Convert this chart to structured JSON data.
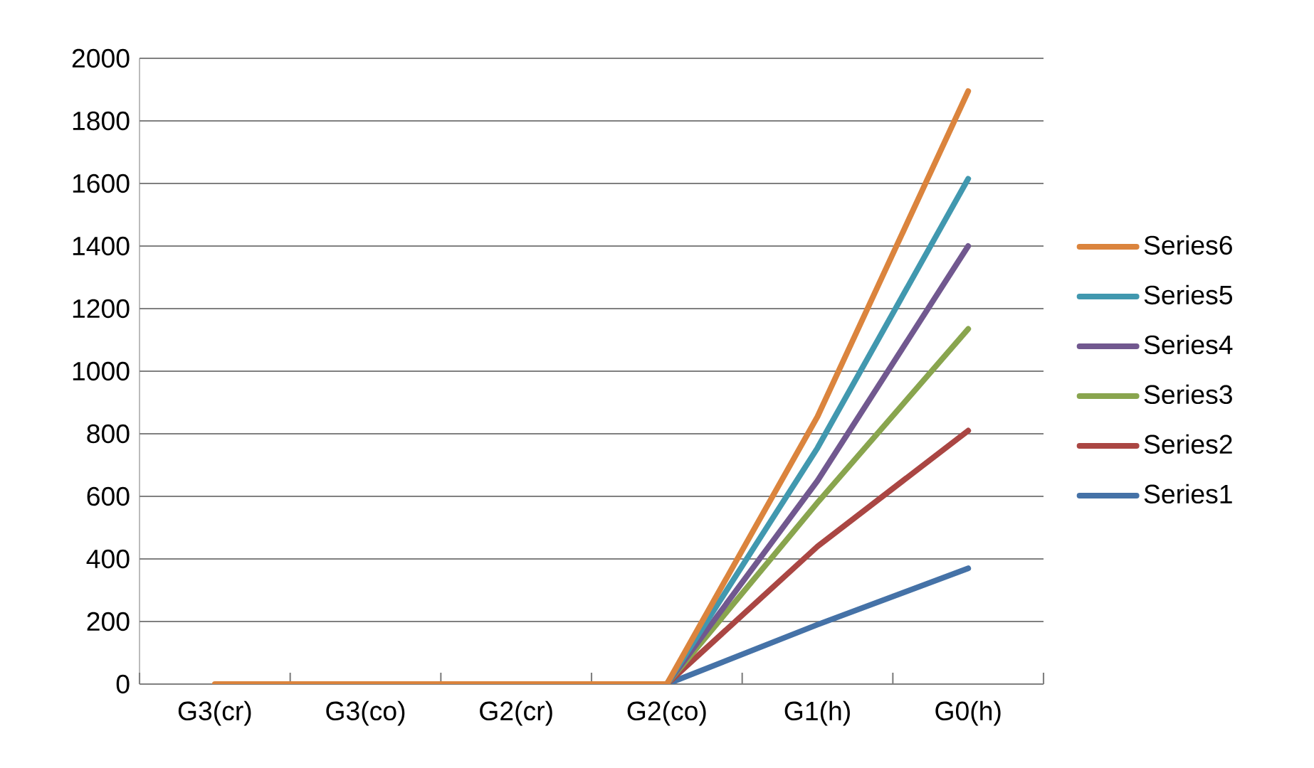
{
  "chart_data": {
    "type": "line",
    "categories": [
      "G3(cr)",
      "G3(co)",
      "G2(cr)",
      "G2(co)",
      "G1(h)",
      "G0(h)"
    ],
    "series": [
      {
        "name": "Series1",
        "color": "#4572a7",
        "values": [
          null,
          null,
          null,
          0,
          190,
          370
        ]
      },
      {
        "name": "Series2",
        "color": "#aa4643",
        "values": [
          null,
          null,
          null,
          0,
          440,
          810
        ]
      },
      {
        "name": "Series3",
        "color": "#89a54e",
        "values": [
          null,
          null,
          null,
          0,
          580,
          1135
        ]
      },
      {
        "name": "Series4",
        "color": "#71588f",
        "values": [
          null,
          null,
          null,
          0,
          650,
          1400
        ]
      },
      {
        "name": "Series5",
        "color": "#4198af",
        "values": [
          null,
          null,
          null,
          0,
          755,
          1615
        ]
      },
      {
        "name": "Series6",
        "color": "#db843d",
        "values": [
          0,
          0,
          0,
          0,
          855,
          1895
        ]
      }
    ],
    "ylim": [
      0,
      2000
    ],
    "yticks": [
      0,
      200,
      400,
      600,
      800,
      1000,
      1200,
      1400,
      1600,
      1800,
      2000
    ],
    "grid": "y",
    "legend": "right",
    "marker": "none",
    "line_style": "solid"
  }
}
